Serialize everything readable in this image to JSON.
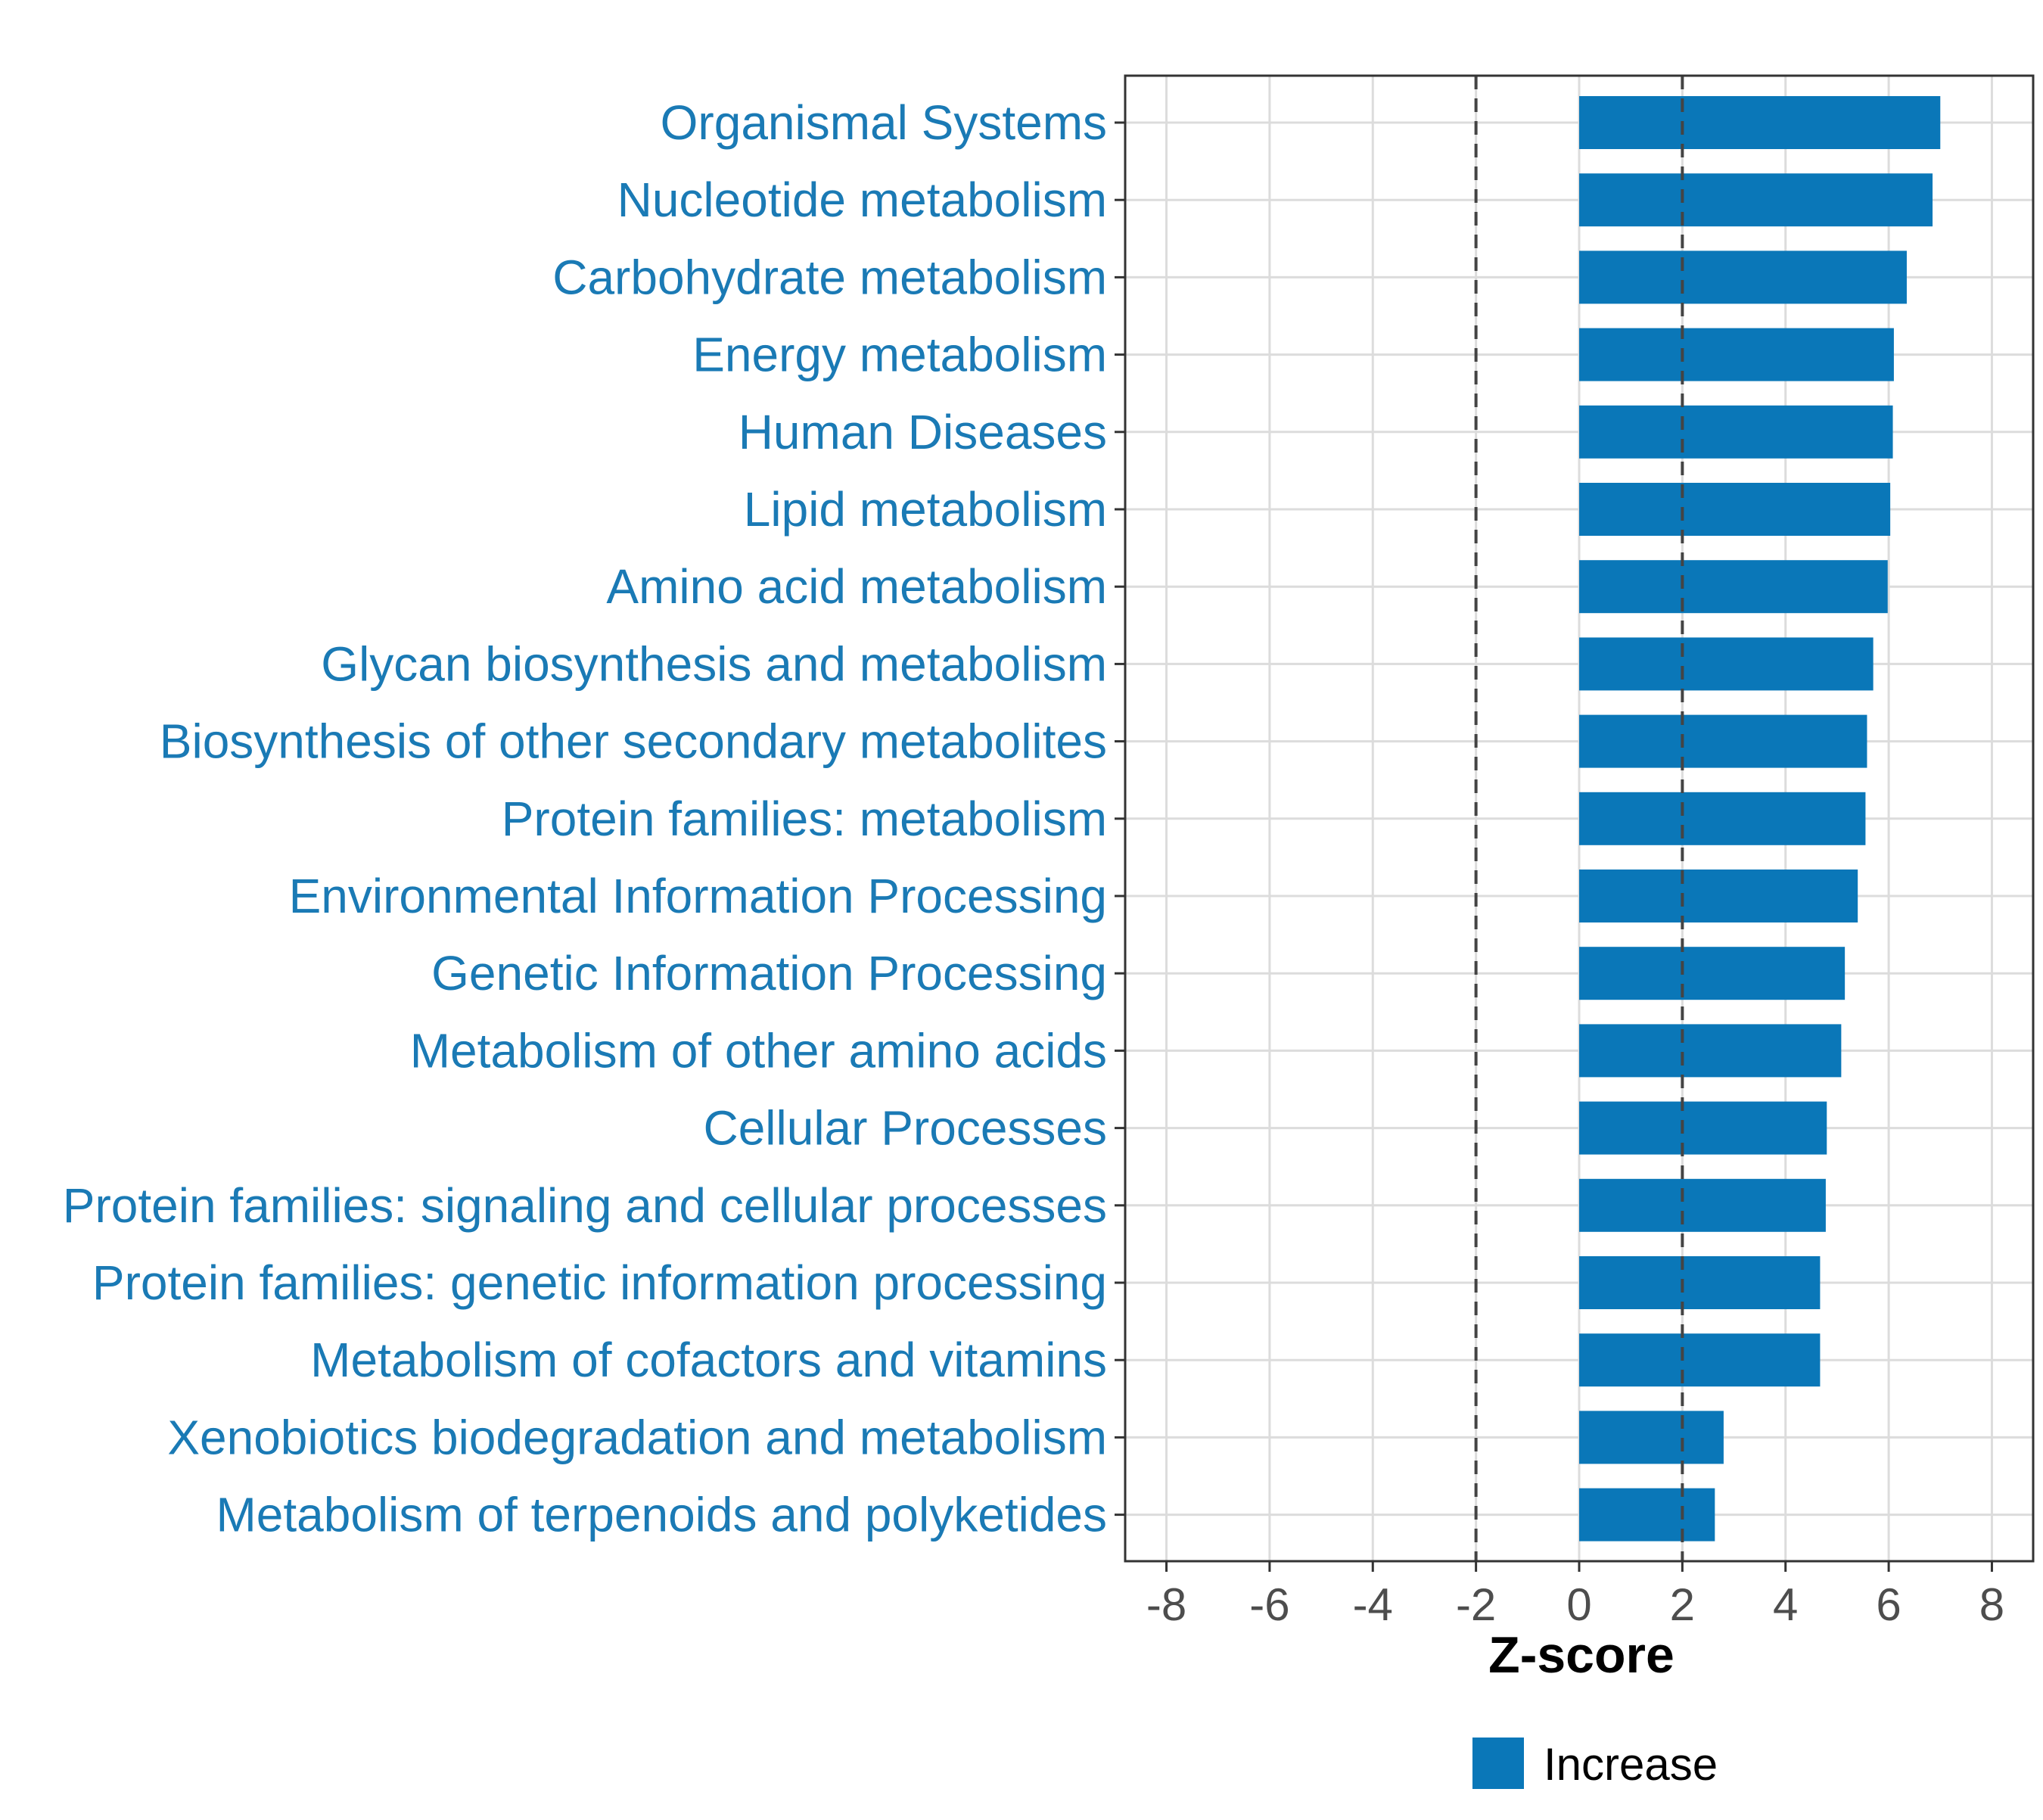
{
  "chart_data": {
    "type": "bar",
    "orientation": "horizontal",
    "categories": [
      "Organismal Systems",
      "Nucleotide metabolism",
      "Carbohydrate metabolism",
      "Energy metabolism",
      "Human Diseases",
      "Lipid metabolism",
      "Amino acid metabolism",
      "Glycan biosynthesis and metabolism",
      "Biosynthesis of other secondary metabolites",
      "Protein families: metabolism",
      "Environmental Information Processing",
      "Genetic Information Processing",
      "Metabolism of other amino acids",
      "Cellular Processes",
      "Protein families: signaling and cellular processes",
      "Protein families: genetic information processing",
      "Metabolism of cofactors and vitamins",
      "Xenobiotics biodegradation and metabolism",
      "Metabolism of terpenoids and polyketides"
    ],
    "values": [
      7.0,
      6.85,
      6.35,
      6.1,
      6.08,
      6.03,
      5.98,
      5.7,
      5.58,
      5.55,
      5.4,
      5.15,
      5.08,
      4.8,
      4.78,
      4.67,
      4.67,
      2.8,
      2.63
    ],
    "series_name": "Increase",
    "bar_color": "#0a77b8",
    "label_color": "#1a7ab5",
    "xlabel": "Z-score",
    "xlim": [
      -8.8,
      8.8
    ],
    "xticks": [
      -8,
      -6,
      -4,
      -2,
      0,
      2,
      4,
      6,
      8
    ],
    "xtick_labels": [
      "-8",
      "-6",
      "-4",
      "-2",
      "0",
      "2",
      "4",
      "6",
      "8"
    ],
    "reference_lines": [
      -2,
      2
    ],
    "grid": true,
    "legend_position": "bottom"
  }
}
